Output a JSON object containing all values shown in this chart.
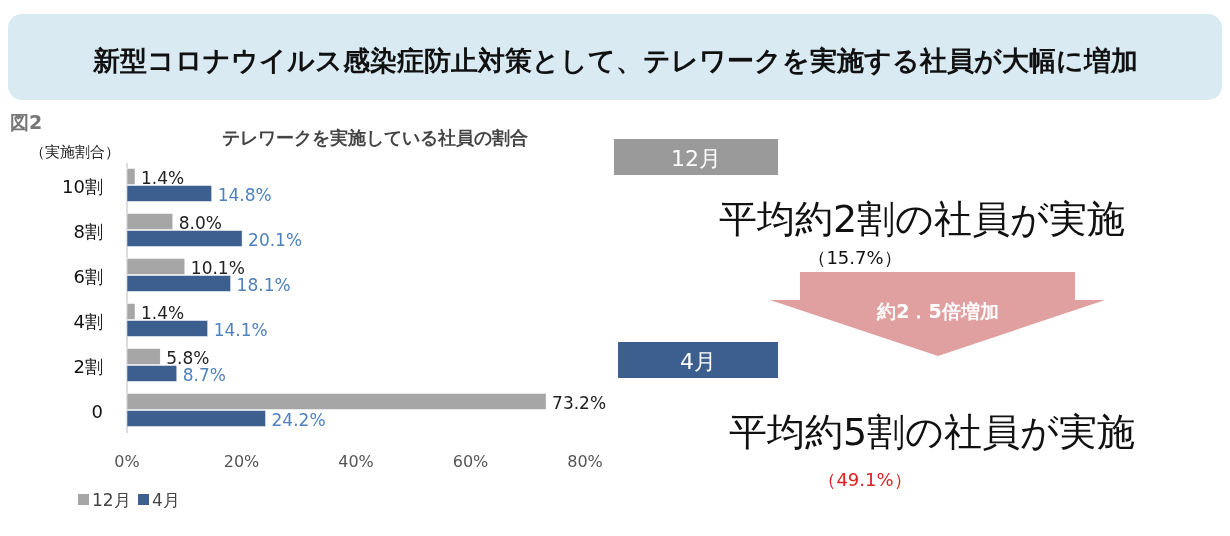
{
  "chart_data": [
    {
      "type": "other",
      "title": "新型コロナウイルス感染症防止対策として、テレワークを実施する社員が大幅に増加",
      "annotations": [
        "12月",
        "平均約2割の社員が実施",
        "（15.7%）",
        "約2．5倍増加",
        "4月",
        "平均約5割の社員が実施",
        "（49.1%）"
      ]
    },
    {
      "type": "bar",
      "orientation": "horizontal",
      "title": "テレワークを実施している社員の割合",
      "annotations": [
        "図2"
      ],
      "ylabel": "（実施割合）",
      "categories": [
        "10割",
        "8割",
        "6割",
        "4割",
        "2割",
        "0"
      ],
      "series": [
        {
          "name": "12月",
          "color": "#a6a6a6",
          "values": [
            1.4,
            8.0,
            10.1,
            1.4,
            5.8,
            73.2
          ],
          "value_labels": [
            "1.4%",
            "8.0%",
            "10.1%",
            "1.4%",
            "5.8%",
            "73.2%"
          ]
        },
        {
          "name": "4月",
          "color": "#3d5f8f",
          "values": [
            14.8,
            20.1,
            18.1,
            14.1,
            8.7,
            24.2
          ],
          "value_labels": [
            "14.8%",
            "20.1%",
            "18.1%",
            "14.1%",
            "8.7%",
            "24.2%"
          ]
        }
      ],
      "xlim": [
        0,
        80
      ],
      "xticks": [
        {
          "value": 0,
          "label": "0%"
        },
        {
          "value": 20,
          "label": "20%"
        },
        {
          "value": 40,
          "label": "40%"
        },
        {
          "value": 60,
          "label": "60%"
        },
        {
          "value": 80,
          "label": "80%"
        }
      ],
      "legend": "bottom left"
    }
  ]
}
